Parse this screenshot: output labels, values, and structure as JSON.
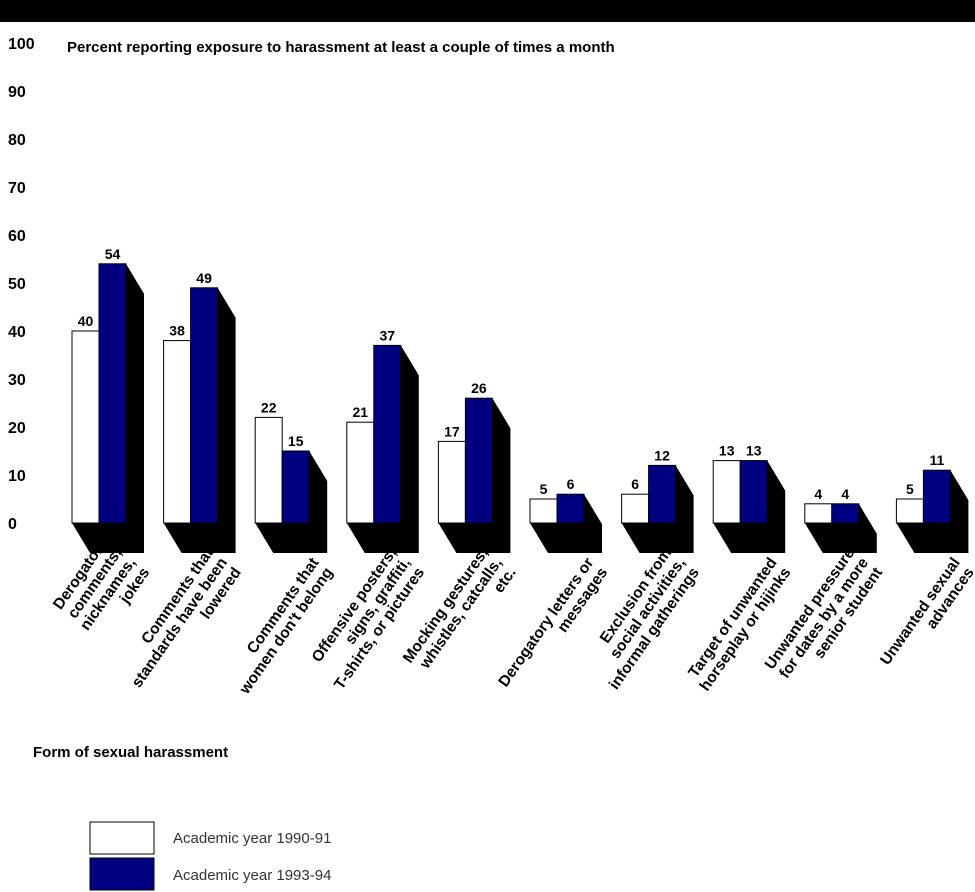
{
  "chart_data": {
    "type": "bar",
    "ylabel": "Percent reporting exposure to harassment at least a couple of times a month",
    "xlabel": "Form of sexual harassment",
    "ylim": [
      0,
      100
    ],
    "yticks": [
      "0",
      "10",
      "20",
      "30",
      "40",
      "50",
      "60",
      "70",
      "80",
      "90",
      "100"
    ],
    "grid": false,
    "legend_position": "bottom-left",
    "categories": [
      [
        "Derogatory",
        "comments,",
        "nicknames,",
        "jokes"
      ],
      [
        "Comments that",
        "standards have been",
        "lowered"
      ],
      [
        "Comments that",
        "women don't belong"
      ],
      [
        "Offensive posters,",
        "signs, graffiti,",
        "T-shirts, or pictures"
      ],
      [
        "Mocking gestures,",
        "whistles, catcalls,",
        "etc."
      ],
      [
        "Derogatory letters or",
        "messages"
      ],
      [
        "Exclusion from",
        "social activities,",
        "informal gatherings"
      ],
      [
        "Target of unwanted",
        "horseplay or hijinks"
      ],
      [
        "Unwanted pressure",
        "for dates by a more",
        "senior student"
      ],
      [
        "Unwanted sexual",
        "advances"
      ]
    ],
    "series": [
      {
        "name": "Academic year 1990-91",
        "color": "#ffffff",
        "values": [
          40,
          38,
          22,
          21,
          17,
          5,
          6,
          13,
          4,
          5
        ]
      },
      {
        "name": "Academic year 1993-94",
        "color": "#000080",
        "values": [
          54,
          49,
          15,
          37,
          26,
          6,
          12,
          13,
          4,
          11
        ]
      }
    ]
  }
}
